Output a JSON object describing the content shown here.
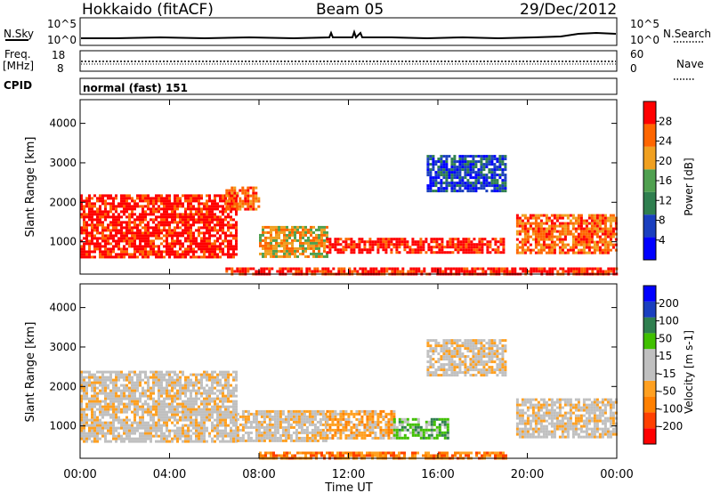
{
  "header": {
    "station": "Hokkaido (fitACF)",
    "beam": "Beam 05",
    "date": "29/Dec/2012"
  },
  "top_panels": {
    "nsky_label": "N.Sky",
    "nsky_ticks": [
      "10^5",
      "10^0"
    ],
    "nsearch_label": "N.Search",
    "nsearch_ticks": [
      "10^5",
      "10^0"
    ],
    "freq_label_1": "Freq.",
    "freq_label_2": "[MHz]",
    "freq_ticks": [
      "18",
      "8"
    ],
    "nave_label": "Nave",
    "nave_ticks": [
      "60",
      "0"
    ],
    "cpid_label": "CPID",
    "cpid_value": "normal (fast) 151"
  },
  "colors": {
    "power": [
      "#0000ff",
      "#1a3fbf",
      "#2f7f4f",
      "#4fa04f",
      "#f0a020",
      "#ff6600",
      "#ff0000"
    ],
    "velocity": [
      "#ff0000",
      "#ff4000",
      "#ff8000",
      "#ffa020",
      "#c0c0c0",
      "#c0c0c0",
      "#40c000",
      "#2f7f4f",
      "#1a3fbf",
      "#0000ff"
    ]
  },
  "chart_data": [
    {
      "type": "heatmap",
      "name": "power",
      "ylabel": "Slant Range [km]",
      "y_ticks": [
        "4000",
        "3000",
        "2000",
        "1000"
      ],
      "y_tick_values": [
        4000,
        3000,
        2000,
        1000
      ],
      "ylim": [
        180,
        4600
      ],
      "colorbar_label": "Power [dB]",
      "colorbar_ticks": [
        "28",
        "24",
        "20",
        "16",
        "12",
        "8",
        "4"
      ],
      "regions": [
        {
          "t0": 0.0,
          "t1": 7.0,
          "r0": 600,
          "r1": 2200,
          "level": 6
        },
        {
          "t0": 6.5,
          "t1": 8.0,
          "r0": 1800,
          "r1": 2400,
          "level": 5
        },
        {
          "t0": 8.0,
          "t1": 11.0,
          "r0": 600,
          "r1": 1400,
          "level": 4
        },
        {
          "t0": 11.0,
          "t1": 19.0,
          "r0": 700,
          "r1": 1100,
          "level": 6
        },
        {
          "t0": 15.5,
          "t1": 19.0,
          "r0": 2300,
          "r1": 3200,
          "level": 1
        },
        {
          "t0": 19.5,
          "t1": 24.0,
          "r0": 700,
          "r1": 1700,
          "level": 5
        },
        {
          "t0": 6.5,
          "t1": 24.0,
          "r0": 200,
          "r1": 350,
          "level": 6
        }
      ]
    },
    {
      "type": "heatmap",
      "name": "velocity",
      "ylabel": "Slant Range [km]",
      "y_ticks": [
        "4000",
        "3000",
        "2000",
        "1000"
      ],
      "y_tick_values": [
        4000,
        3000,
        2000,
        1000
      ],
      "ylim": [
        180,
        4600
      ],
      "colorbar_label": "Velocity [m s-1]",
      "colorbar_ticks": [
        "200",
        "100",
        "50",
        "15",
        "-15",
        "-50",
        "-100",
        "-200"
      ],
      "regions": [
        {
          "t0": 0.0,
          "t1": 7.0,
          "r0": 600,
          "r1": 2400,
          "level": 4
        },
        {
          "t0": 7.0,
          "t1": 11.0,
          "r0": 600,
          "r1": 1400,
          "level": 4
        },
        {
          "t0": 11.0,
          "t1": 14.0,
          "r0": 700,
          "r1": 1400,
          "level": 3
        },
        {
          "t0": 14.0,
          "t1": 16.5,
          "r0": 700,
          "r1": 1200,
          "level": 6
        },
        {
          "t0": 15.5,
          "t1": 19.0,
          "r0": 2300,
          "r1": 3200,
          "level": 4
        },
        {
          "t0": 19.5,
          "t1": 24.0,
          "r0": 700,
          "r1": 1700,
          "level": 4
        },
        {
          "t0": 8.0,
          "t1": 19.0,
          "r0": 200,
          "r1": 350,
          "level": 2
        }
      ]
    }
  ],
  "x_axis": {
    "label": "Time UT",
    "ticks": [
      "00:00",
      "04:00",
      "08:00",
      "12:00",
      "16:00",
      "20:00",
      "00:00"
    ],
    "tick_hours": [
      0,
      4,
      8,
      12,
      16,
      20,
      24
    ]
  }
}
